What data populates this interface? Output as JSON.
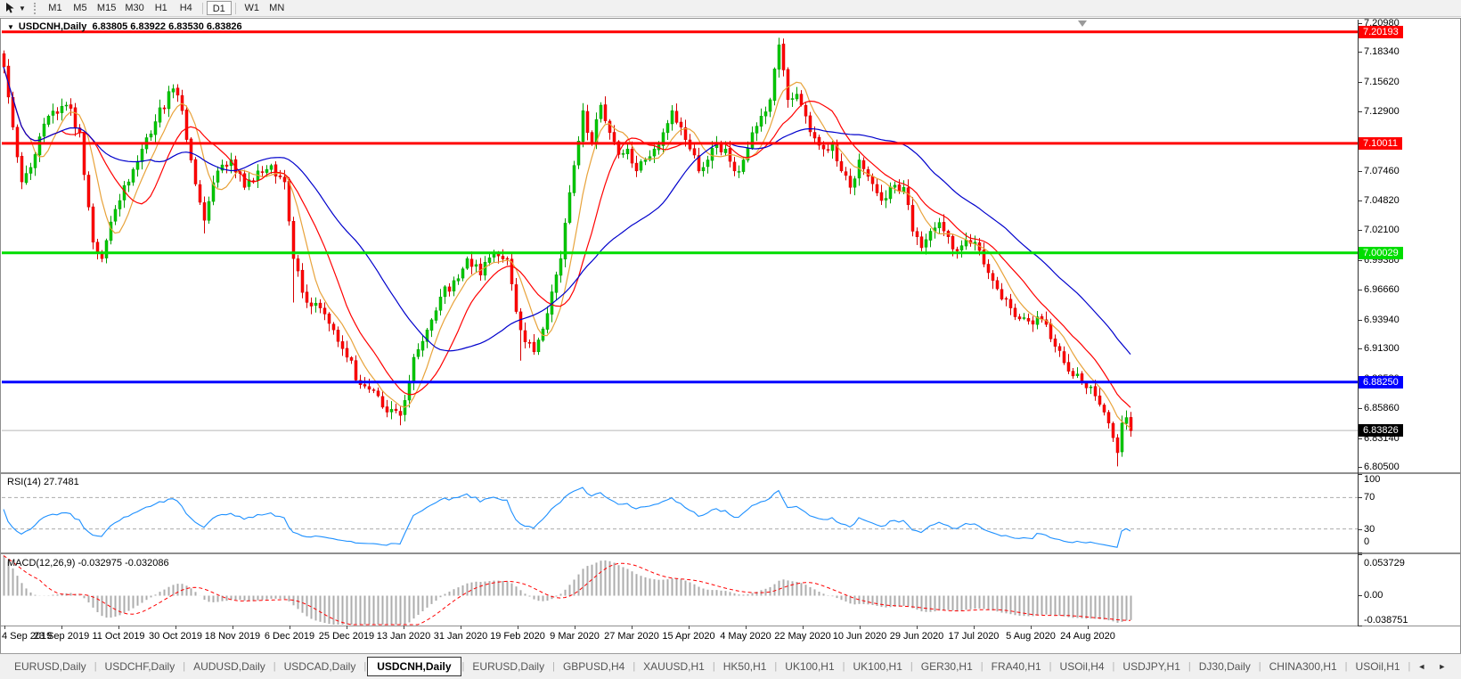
{
  "toolbar": {
    "cursor_tool_name": "crosshair-cursor-tool",
    "dropdown_glyph": "▼",
    "timeframes": [
      "M1",
      "M5",
      "M15",
      "M30",
      "H1",
      "H4",
      "D1",
      "W1",
      "MN"
    ],
    "active_timeframe": "D1"
  },
  "chart_header": {
    "menu_icon": "▼",
    "title": "USDCNH,Daily",
    "ohlc": "6.83805 6.83922 6.83530 6.83826"
  },
  "chart_data": {
    "type": "candlestick",
    "symbol": "USDCNH",
    "timeframe": "Daily",
    "colors": {
      "up": "#00C800",
      "up_stroke": "#00A000",
      "down": "#FF0000",
      "down_stroke": "#D40000",
      "ma_fast": "#E8A33B",
      "ma_mid": "#FF0000",
      "ma_slow": "#0000CC",
      "rsi_line": "#1E90FF",
      "rsi_level": "#ABABAB",
      "macd_hist": "#ADADAD",
      "macd_signal": "#FF0000",
      "current_price_line": "#B8B8B8"
    },
    "price_axis": {
      "top_value": 7.2098,
      "bottom_value": 6.805,
      "ticks": [
        "7.20980",
        "7.18340",
        "7.15620",
        "7.12900",
        "7.10180",
        "7.07460",
        "7.04820",
        "7.02100",
        "6.99380",
        "6.96660",
        "6.93940",
        "6.91300",
        "6.88580",
        "6.85860",
        "6.83140",
        "6.80500"
      ]
    },
    "levels": [
      {
        "value": 7.20193,
        "label": "7.20193",
        "color": "#FF0000",
        "width": 3
      },
      {
        "value": 7.10011,
        "label": "7.10011",
        "color": "#FF0000",
        "width": 3
      },
      {
        "value": 7.00029,
        "label": "7.00029",
        "color": "#00DD00",
        "width": 3
      },
      {
        "value": 6.8825,
        "label": "6.88250",
        "color": "#0000FF",
        "width": 3
      },
      {
        "value": 6.83826,
        "label": "6.83826",
        "color": "#B8B8B8",
        "width": 1,
        "tag_bg": "#000000"
      }
    ],
    "candles": {
      "count": 254,
      "anchors": [
        [
          0,
          7.17
        ],
        [
          2,
          7.115
        ],
        [
          4,
          7.065
        ],
        [
          7,
          7.09
        ],
        [
          10,
          7.125
        ],
        [
          14,
          7.135
        ],
        [
          17,
          7.11
        ],
        [
          20,
          7.01
        ],
        [
          22,
          6.995
        ],
        [
          25,
          7.04
        ],
        [
          28,
          7.065
        ],
        [
          31,
          7.095
        ],
        [
          34,
          7.12
        ],
        [
          38,
          7.15
        ],
        [
          40,
          7.13
        ],
        [
          42,
          7.085
        ],
        [
          45,
          7.03
        ],
        [
          48,
          7.075
        ],
        [
          51,
          7.085
        ],
        [
          54,
          7.06
        ],
        [
          57,
          7.075
        ],
        [
          60,
          7.08
        ],
        [
          63,
          7.065
        ],
        [
          65,
          6.995
        ],
        [
          68,
          6.955
        ],
        [
          71,
          6.95
        ],
        [
          74,
          6.93
        ],
        [
          77,
          6.905
        ],
        [
          80,
          6.88
        ],
        [
          83,
          6.875
        ],
        [
          86,
          6.855
        ],
        [
          89,
          6.852
        ],
        [
          92,
          6.905
        ],
        [
          95,
          6.93
        ],
        [
          98,
          6.96
        ],
        [
          101,
          6.975
        ],
        [
          104,
          6.995
        ],
        [
          107,
          6.98
        ],
        [
          110,
          7.0
        ],
        [
          113,
          6.995
        ],
        [
          116,
          6.93
        ],
        [
          119,
          6.91
        ],
        [
          122,
          6.945
        ],
        [
          125,
          6.995
        ],
        [
          128,
          7.08
        ],
        [
          130,
          7.13
        ],
        [
          132,
          7.1
        ],
        [
          134,
          7.135
        ],
        [
          136,
          7.11
        ],
        [
          138,
          7.09
        ],
        [
          140,
          7.095
        ],
        [
          142,
          7.075
        ],
        [
          144,
          7.085
        ],
        [
          146,
          7.095
        ],
        [
          148,
          7.11
        ],
        [
          150,
          7.13
        ],
        [
          152,
          7.115
        ],
        [
          154,
          7.095
        ],
        [
          156,
          7.075
        ],
        [
          158,
          7.085
        ],
        [
          160,
          7.1
        ],
        [
          162,
          7.095
        ],
        [
          164,
          7.075
        ],
        [
          166,
          7.085
        ],
        [
          168,
          7.11
        ],
        [
          170,
          7.125
        ],
        [
          172,
          7.14
        ],
        [
          174,
          7.19
        ],
        [
          176,
          7.14
        ],
        [
          178,
          7.145
        ],
        [
          180,
          7.125
        ],
        [
          182,
          7.105
        ],
        [
          184,
          7.095
        ],
        [
          186,
          7.1
        ],
        [
          188,
          7.075
        ],
        [
          190,
          7.06
        ],
        [
          192,
          7.085
        ],
        [
          194,
          7.07
        ],
        [
          196,
          7.055
        ],
        [
          198,
          7.05
        ],
        [
          200,
          7.062
        ],
        [
          202,
          7.06
        ],
        [
          204,
          7.02
        ],
        [
          206,
          7.005
        ],
        [
          208,
          7.02
        ],
        [
          210,
          7.028
        ],
        [
          212,
          7.015
        ],
        [
          214,
          7.002
        ],
        [
          216,
          7.012
        ],
        [
          218,
          7.01
        ],
        [
          220,
          6.99
        ],
        [
          222,
          6.975
        ],
        [
          224,
          6.958
        ],
        [
          226,
          6.95
        ],
        [
          228,
          6.94
        ],
        [
          230,
          6.938
        ],
        [
          232,
          6.942
        ],
        [
          234,
          6.935
        ],
        [
          236,
          6.915
        ],
        [
          238,
          6.9
        ],
        [
          240,
          6.888
        ],
        [
          242,
          6.882
        ],
        [
          244,
          6.878
        ],
        [
          246,
          6.862
        ],
        [
          248,
          6.845
        ],
        [
          250,
          6.818
        ],
        [
          251,
          6.845
        ],
        [
          252,
          6.85
        ],
        [
          253,
          6.838
        ]
      ],
      "spikes": [
        {
          "i": 174,
          "high": 7.1965
        },
        {
          "i": 89,
          "low": 6.843
        },
        {
          "i": 250,
          "low": 6.805
        },
        {
          "i": 65,
          "low": 6.955
        },
        {
          "i": 116,
          "low": 6.902
        },
        {
          "i": 45,
          "low": 7.018
        }
      ]
    },
    "moving_averages": [
      {
        "period": 7,
        "color_key": "ma_fast"
      },
      {
        "period": 14,
        "color_key": "ma_mid"
      },
      {
        "period": 34,
        "color_key": "ma_slow"
      }
    ],
    "rsi": {
      "label": "RSI(14) 27.7481",
      "period": 14,
      "levels": [
        70,
        30
      ],
      "axis_ticks": [
        "100",
        "70",
        "30",
        "0"
      ],
      "axis_tick_values": [
        100,
        70,
        30,
        0
      ]
    },
    "macd": {
      "label": "MACD(12,26,9) -0.032975 -0.032086",
      "fast": 12,
      "slow": 26,
      "signal": 9,
      "seed_fast_offset": 0.022,
      "seed_slow_offset": -0.03,
      "max": 0.053729,
      "min": -0.038751,
      "axis_ticks": [
        "0.053729",
        "0.00",
        "-0.038751"
      ],
      "axis_tick_values": [
        0.053729,
        0,
        -0.038751
      ]
    },
    "x_axis_dates": [
      "4 Sep 2019",
      "23 Sep 2019",
      "11 Oct 2019",
      "30 Oct 2019",
      "18 Nov 2019",
      "6 Dec 2019",
      "25 Dec 2019",
      "13 Jan 2020",
      "31 Jan 2020",
      "19 Feb 2020",
      "9 Mar 2020",
      "27 Mar 2020",
      "15 Apr 2020",
      "4 May 2020",
      "22 May 2020",
      "10 Jun 2020",
      "29 Jun 2020",
      "17 Jul 2020",
      "5 Aug 2020",
      "24 Aug 2020"
    ]
  },
  "tabs": {
    "items": [
      "EURUSD,Daily",
      "USDCHF,Daily",
      "AUDUSD,Daily",
      "USDCAD,Daily",
      "USDCNH,Daily",
      "EURUSD,Daily",
      "GBPUSD,H4",
      "XAUUSD,H1",
      "HK50,H1",
      "UK100,H1",
      "UK100,H1",
      "GER30,H1",
      "FRA40,H1",
      "USOil,H4",
      "USDJPY,H1",
      "DJ30,Daily",
      "CHINA300,H1",
      "USOil,H1"
    ],
    "active_index": 4,
    "scroll_left": "◄",
    "scroll_right": "►"
  }
}
